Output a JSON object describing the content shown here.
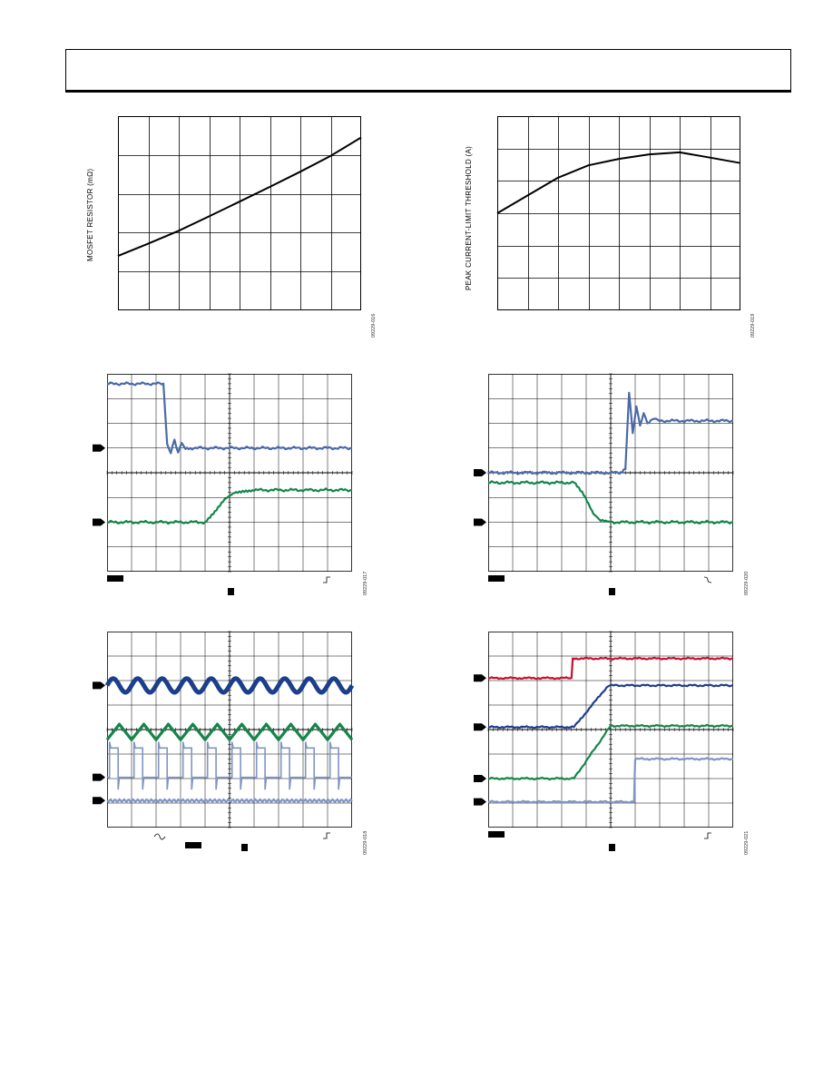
{
  "header": {
    "text": ""
  },
  "figures": [
    {
      "id": "09229-016",
      "ylabel": "MOSFET RESISTOR (mΩ)"
    },
    {
      "id": "09229-019",
      "ylabel": "PEAK CURRENT-LIMIT THRESHOLD (A)"
    },
    {
      "id": "09229-017"
    },
    {
      "id": "09229-020"
    },
    {
      "id": "09229-018"
    },
    {
      "id": "09229-021"
    }
  ],
  "colors": {
    "ch_blue": "#4a6aa8",
    "ch_dark_blue": "#1c3f8c",
    "ch_green": "#15864a",
    "ch_light_blue": "#7f95c4",
    "ch_red": "#c8102e",
    "grid": "#000000",
    "curve": "#000000"
  },
  "chart_data": [
    {
      "type": "line",
      "ylabel": "MOSFET RESISTOR (mΩ)",
      "grid": true,
      "xlim": [
        0,
        8
      ],
      "ylim": [
        0,
        5
      ],
      "series": [
        {
          "x": [
            0,
            1,
            2,
            3,
            4,
            5,
            6,
            7,
            8
          ],
          "y": [
            1.4,
            1.72,
            2.05,
            2.42,
            2.8,
            3.18,
            3.57,
            3.98,
            4.45
          ]
        }
      ]
    },
    {
      "type": "line",
      "ylabel": "PEAK CURRENT-LIMIT THRESHOLD (A)",
      "grid": true,
      "xlim": [
        0,
        8
      ],
      "ylim": [
        0,
        6
      ],
      "series": [
        {
          "x": [
            0,
            1,
            2,
            3,
            4,
            5,
            6,
            7,
            8
          ],
          "y": [
            3.0,
            3.55,
            4.1,
            4.48,
            4.68,
            4.82,
            4.88,
            4.72,
            4.55
          ]
        }
      ]
    },
    {
      "type": "line",
      "grid": true,
      "xlim": [
        0,
        10
      ],
      "ylim": [
        0,
        8
      ],
      "series": [
        {
          "x": [
            0,
            2.3,
            2.45,
            2.6,
            2.75,
            2.9,
            3.05,
            3.2,
            3.4,
            10
          ],
          "y": [
            7.6,
            7.6,
            5.2,
            4.75,
            5.35,
            4.85,
            5.15,
            5.0,
            5.0,
            5.0
          ]
        },
        {
          "x": [
            0,
            4.0,
            4.4,
            4.8,
            5.2,
            5.6,
            6.0,
            10
          ],
          "y": [
            2.0,
            2.0,
            2.4,
            2.9,
            3.2,
            3.28,
            3.3,
            3.3
          ]
        }
      ]
    },
    {
      "type": "line",
      "grid": true,
      "xlim": [
        0,
        10
      ],
      "ylim": [
        0,
        8
      ],
      "series": [
        {
          "x": [
            0,
            5.4,
            5.6,
            5.75,
            5.9,
            6.05,
            6.2,
            6.35,
            6.5,
            6.7,
            7.0,
            10
          ],
          "y": [
            4.0,
            4.0,
            4.2,
            7.2,
            5.6,
            6.7,
            5.9,
            6.4,
            6.0,
            6.2,
            6.1,
            6.1
          ]
        },
        {
          "x": [
            0,
            3.5,
            3.9,
            4.3,
            4.6,
            5.0,
            10
          ],
          "y": [
            3.6,
            3.6,
            3.1,
            2.35,
            2.05,
            2.0,
            2.0
          ]
        }
      ]
    },
    {
      "type": "line",
      "grid": true,
      "xlim": [
        0,
        10
      ],
      "ylim": [
        0,
        8
      ],
      "series": [
        {
          "shape": "ripple",
          "level": 5.8,
          "amplitude": 0.28,
          "cycles": 10
        },
        {
          "shape": "triangle",
          "level": 3.9,
          "amplitude": 0.32,
          "cycles": 10
        },
        {
          "shape": "pulse",
          "level": 2.05,
          "high": 3.25,
          "cycles": 10,
          "duty": 0.35
        },
        {
          "shape": "flat",
          "level": 1.1
        }
      ]
    },
    {
      "type": "line",
      "grid": true,
      "xlim": [
        0,
        10
      ],
      "ylim": [
        0,
        8
      ],
      "series": [
        {
          "x": [
            0,
            3.4,
            3.45,
            10
          ],
          "y": [
            6.1,
            6.1,
            6.9,
            6.9
          ]
        },
        {
          "x": [
            0,
            3.5,
            4.9,
            10
          ],
          "y": [
            4.1,
            4.1,
            5.8,
            5.8
          ]
        },
        {
          "x": [
            0,
            3.5,
            5.0,
            10
          ],
          "y": [
            2.0,
            2.0,
            4.15,
            4.15
          ]
        },
        {
          "x": [
            0,
            5.95,
            6.0,
            10
          ],
          "y": [
            1.05,
            1.05,
            2.8,
            2.8
          ]
        }
      ]
    }
  ]
}
